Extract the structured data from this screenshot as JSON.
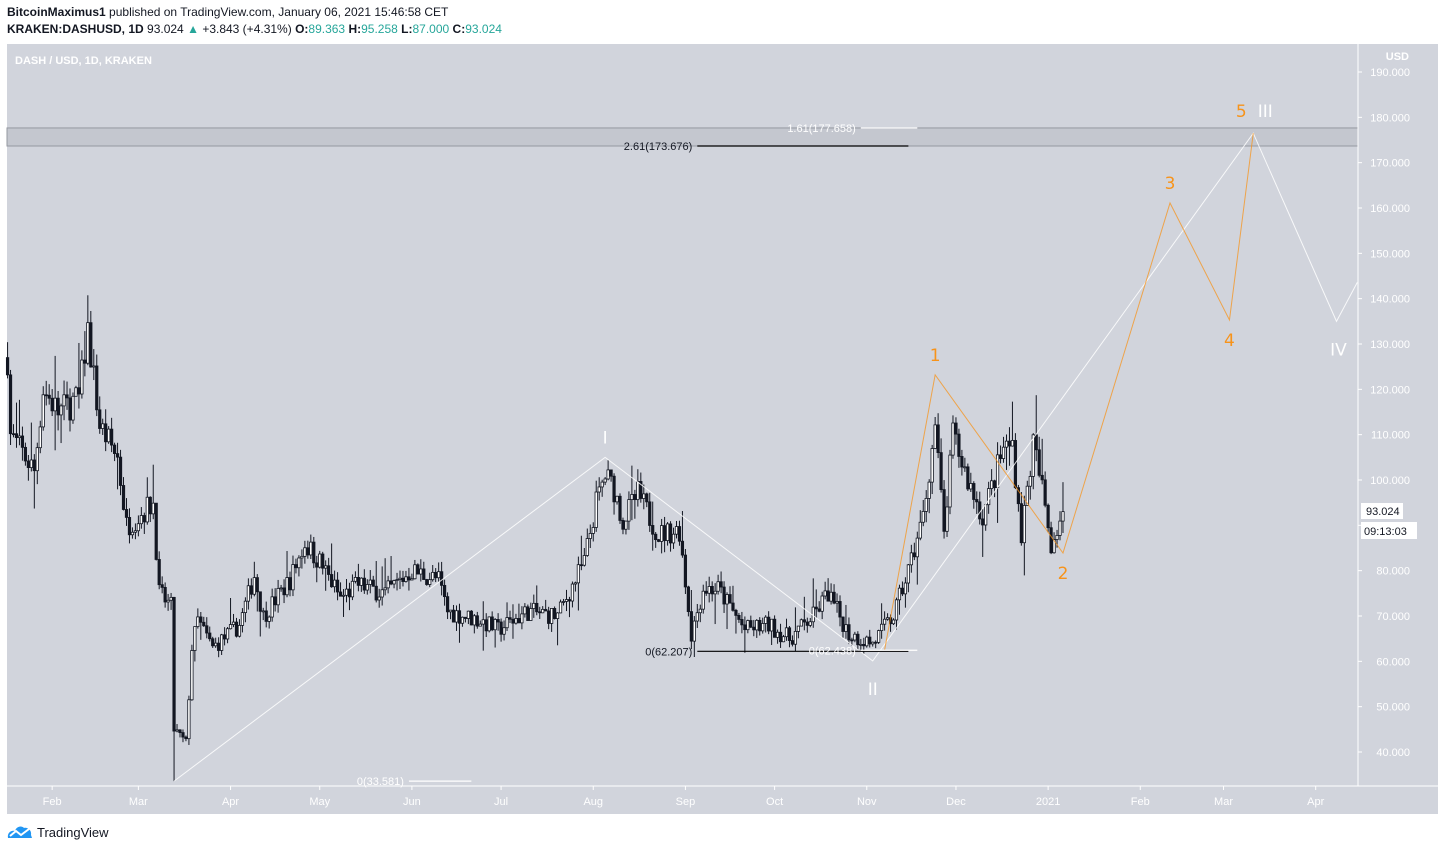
{
  "header": {
    "author": "BitcoinMaximus1",
    "published": "published on TradingView.com, January 06, 2021 15:46:58 CET",
    "symbol": "KRAKEN:DASHUSD, 1D",
    "last": "93.024",
    "change": "+3.843 (+4.31%)",
    "open_label": "O:",
    "open": "89.363",
    "high_label": "H:",
    "high": "95.258",
    "low_label": "L:",
    "low": "87.000",
    "close_label": "C:",
    "close": "93.024",
    "up_arrow_icon": "triangle-up-icon"
  },
  "chart_data": {
    "type": "candlestick",
    "title": "DASH / USD, 1D, KRAKEN",
    "currency": "USD",
    "ylim": [
      30,
      192
    ],
    "y_ticks": [
      "190.000",
      "180.000",
      "170.000",
      "160.000",
      "150.000",
      "140.000",
      "130.000",
      "120.000",
      "110.000",
      "100.000",
      "90.000",
      "80.000",
      "70.000",
      "60.000",
      "50.000",
      "40.000"
    ],
    "x_ticks": [
      {
        "date": "2020-02-01",
        "label": "Feb"
      },
      {
        "date": "2020-03-01",
        "label": "Mar"
      },
      {
        "date": "2020-04-01",
        "label": "Apr"
      },
      {
        "date": "2020-05-01",
        "label": "May"
      },
      {
        "date": "2020-06-01",
        "label": "Jun"
      },
      {
        "date": "2020-07-01",
        "label": "Jul"
      },
      {
        "date": "2020-08-01",
        "label": "Aug"
      },
      {
        "date": "2020-09-01",
        "label": "Sep"
      },
      {
        "date": "2020-10-01",
        "label": "Oct"
      },
      {
        "date": "2020-11-01",
        "label": "Nov"
      },
      {
        "date": "2020-12-01",
        "label": "Dec"
      },
      {
        "date": "2021-01-01",
        "label": "2021"
      },
      {
        "date": "2021-02-01",
        "label": "Feb"
      },
      {
        "date": "2021-03-01",
        "label": "Mar"
      },
      {
        "date": "2021-04-01",
        "label": "Apr"
      }
    ],
    "price_path_approx": [
      [
        "2020-01-17",
        127
      ],
      [
        "2020-01-18",
        110
      ],
      [
        "2020-01-26",
        102
      ],
      [
        "2020-01-29",
        120
      ],
      [
        "2020-02-03",
        115
      ],
      [
        "2020-02-10",
        118
      ],
      [
        "2020-02-13",
        133
      ],
      [
        "2020-02-17",
        112
      ],
      [
        "2020-02-23",
        105
      ],
      [
        "2020-02-26",
        90
      ],
      [
        "2020-03-01",
        92
      ],
      [
        "2020-03-06",
        95
      ],
      [
        "2020-03-08",
        75
      ],
      [
        "2020-03-12",
        72
      ],
      [
        "2020-03-13",
        45
      ],
      [
        "2020-03-17",
        42
      ],
      [
        "2020-03-19",
        63
      ],
      [
        "2020-03-21",
        69
      ],
      [
        "2020-03-26",
        63
      ],
      [
        "2020-04-04",
        68
      ],
      [
        "2020-04-09",
        79
      ],
      [
        "2020-04-12",
        70
      ],
      [
        "2020-04-21",
        78
      ],
      [
        "2020-04-26",
        86
      ],
      [
        "2020-05-01",
        82
      ],
      [
        "2020-05-08",
        74
      ],
      [
        "2020-05-14",
        77
      ],
      [
        "2020-05-23",
        75
      ],
      [
        "2020-06-01",
        80
      ],
      [
        "2020-06-10",
        78
      ],
      [
        "2020-06-13",
        71
      ],
      [
        "2020-06-24",
        69
      ],
      [
        "2020-06-30",
        67
      ],
      [
        "2020-07-10",
        71
      ],
      [
        "2020-07-20",
        70
      ],
      [
        "2020-07-29",
        82
      ],
      [
        "2020-08-02",
        95
      ],
      [
        "2020-08-05",
        101
      ],
      [
        "2020-08-08",
        98
      ],
      [
        "2020-08-11",
        91
      ],
      [
        "2020-08-16",
        97
      ],
      [
        "2020-08-23",
        88
      ],
      [
        "2020-08-30",
        89
      ],
      [
        "2020-09-03",
        66
      ],
      [
        "2020-09-07",
        76
      ],
      [
        "2020-09-12",
        76
      ],
      [
        "2020-09-21",
        67
      ],
      [
        "2020-09-29",
        68
      ],
      [
        "2020-10-06",
        65
      ],
      [
        "2020-10-14",
        70
      ],
      [
        "2020-10-19",
        75
      ],
      [
        "2020-10-26",
        66
      ],
      [
        "2020-11-03",
        64
      ],
      [
        "2020-11-10",
        70
      ],
      [
        "2020-11-15",
        80
      ],
      [
        "2020-11-20",
        92
      ],
      [
        "2020-11-24",
        112
      ],
      [
        "2020-11-27",
        88
      ],
      [
        "2020-11-30",
        110
      ],
      [
        "2020-12-05",
        100
      ],
      [
        "2020-12-10",
        92
      ],
      [
        "2020-12-17",
        107
      ],
      [
        "2020-12-20",
        108
      ],
      [
        "2020-12-23",
        88
      ],
      [
        "2020-12-27",
        108
      ],
      [
        "2020-12-30",
        98
      ],
      [
        "2021-01-02",
        86
      ],
      [
        "2021-01-06",
        93.024
      ]
    ],
    "last_price_label": "93.024",
    "countdown_label": "09:13:03",
    "resistance_zone": [
      173.676,
      177.658
    ],
    "fib_levels": [
      {
        "label": "2.61(173.676)",
        "price": 173.676,
        "color": "#000000",
        "from": "2020-09-05",
        "to": "2020-11-15"
      },
      {
        "label": "1.61(177.658)",
        "price": 177.658,
        "color": "#ffffff",
        "from": "2020-10-30",
        "to": "2020-11-18"
      },
      {
        "label": "0(62.207)",
        "price": 62.207,
        "color": "#000000",
        "from": "2020-09-05",
        "to": "2020-11-15"
      },
      {
        "label": "0(62.438)",
        "price": 62.438,
        "color": "#ffffff",
        "from": "2020-10-30",
        "to": "2020-11-18"
      },
      {
        "label": "0(33.581)",
        "price": 33.581,
        "color": "#ffffff",
        "from": "2020-05-31",
        "to": "2020-06-21"
      }
    ],
    "waves": [
      {
        "name": "primary",
        "color": "#ffffff",
        "points": [
          {
            "date": "2020-03-13",
            "price": 33.581,
            "label": ""
          },
          {
            "date": "2020-08-05",
            "price": 105,
            "label": "I"
          },
          {
            "date": "2020-11-03",
            "price": 60.1,
            "label": "II"
          },
          {
            "date": "2021-03-11",
            "price": 176.5,
            "label": "III"
          },
          {
            "date": "2021-04-08",
            "price": 135,
            "label": "IV"
          },
          {
            "date": "2021-04-15",
            "price": 143.6,
            "label": ""
          }
        ]
      },
      {
        "name": "minor",
        "color": "#f7931a",
        "points": [
          {
            "date": "2020-11-07",
            "price": 62.5,
            "label": ""
          },
          {
            "date": "2020-11-24",
            "price": 123.2,
            "label": "1"
          },
          {
            "date": "2021-01-06",
            "price": 83.9,
            "label": "2"
          },
          {
            "date": "2021-02-11",
            "price": 161.1,
            "label": "3"
          },
          {
            "date": "2021-03-03",
            "price": 135.3,
            "label": "4"
          },
          {
            "date": "2021-03-11",
            "price": 176.5,
            "label": "5"
          }
        ]
      }
    ],
    "grid": false,
    "colors": {
      "background": "#d1d4dc",
      "up_body": "#ffffff",
      "down_body": "#131722",
      "wick": "#131722",
      "zone": "#c4c7cf"
    }
  },
  "footer": {
    "logo_icon": "tradingview-cloud-icon",
    "brand": "TradingView"
  }
}
